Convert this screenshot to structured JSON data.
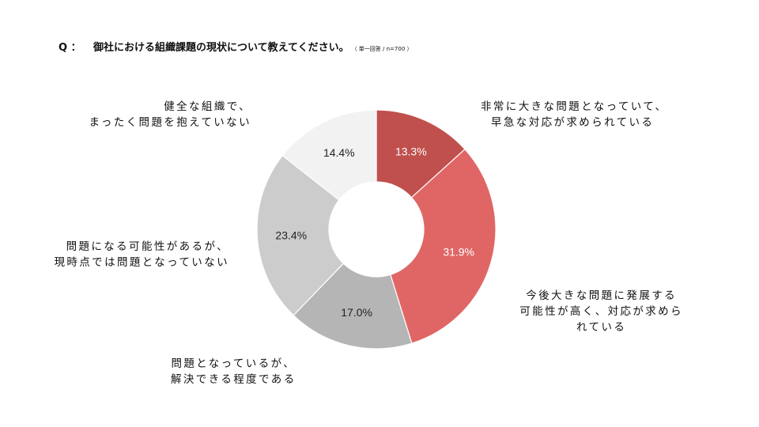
{
  "question": {
    "marker": "Q ：",
    "text": "御社における組織課題の現状について教えてください。",
    "note": "（ 単一回答 / n=700 ）"
  },
  "chart_data": {
    "type": "pie",
    "donut": true,
    "categories": [
      "非常に大きな問題となっていて、早急な対応が求められている",
      "今後大きな問題に発展する可能性が高く、対応が求められている",
      "問題となっているが、解決できる程度である",
      "問題になる可能性があるが、現時点では問題となっていない",
      "健全な組織で、まったく問題を抱えていない"
    ],
    "values": [
      13.3,
      31.9,
      17.0,
      23.4,
      14.4
    ],
    "value_labels": [
      "13.3%",
      "31.9%",
      "17.0%",
      "23.4%",
      "14.4%"
    ],
    "colors": [
      "#c0504d",
      "#e06666",
      "#b5b5b5",
      "#cccccc",
      "#f2f2f2"
    ],
    "label_colors": [
      "#ffffff",
      "#ffffff",
      "#222222",
      "#222222",
      "#222222"
    ],
    "labels": [
      [
        "非常に大きな問題となっていて、",
        "早急な対応が求められている"
      ],
      [
        "今後大きな問題に発展する",
        "可能性が高く、対応が求めら",
        "れている"
      ],
      [
        "問題となっているが、",
        "解決できる程度である"
      ],
      [
        "問題になる可能性があるが、",
        "現時点では問題となっていない"
      ],
      [
        "健全な組織で、",
        "まったく問題を抱えていない"
      ]
    ]
  }
}
